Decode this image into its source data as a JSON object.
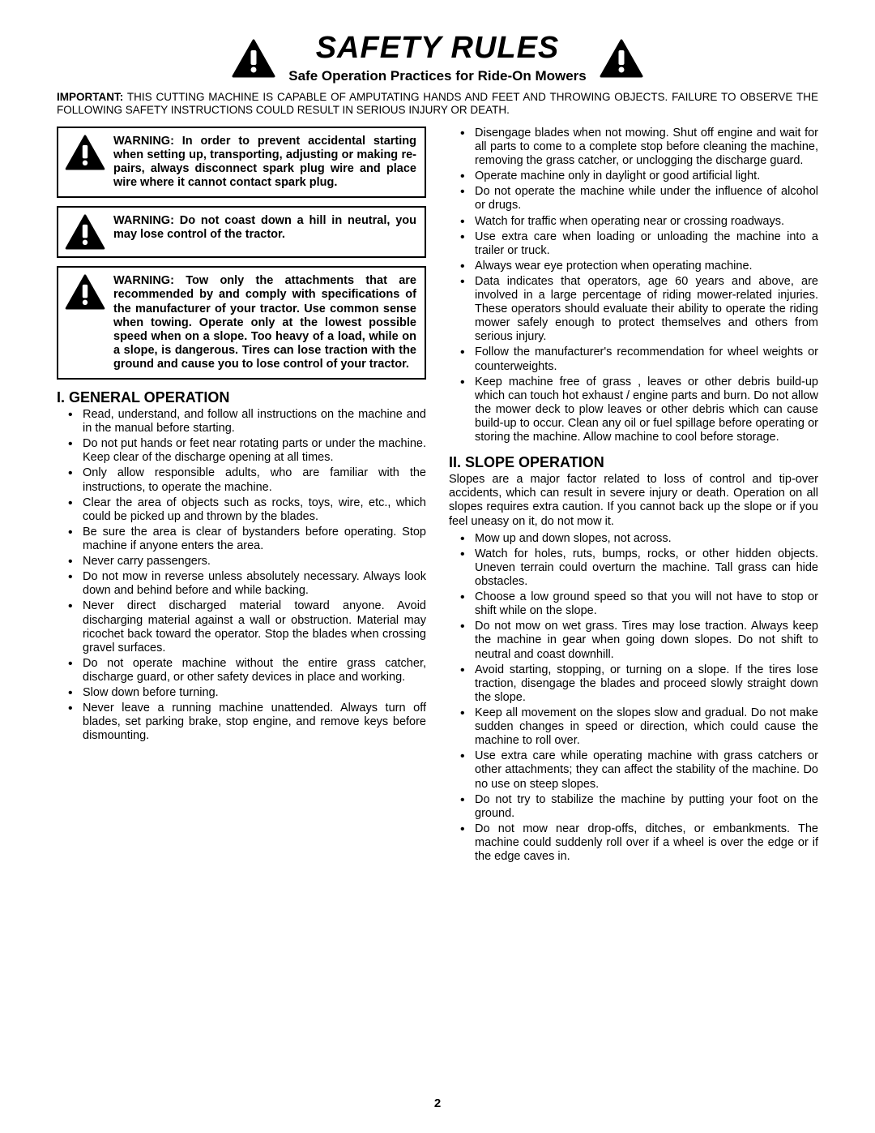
{
  "page_number": "2",
  "header": {
    "title": "SAFETY RULES",
    "subtitle": "Safe Operation Practices for Ride-On Mowers"
  },
  "important": {
    "label": "IMPORTANT:",
    "text": "THIS CUTTING MACHINE IS CAPABLE OF AMPUTATING HANDS AND FEET AND THROWING OBJECTS.  FAILURE TO OBSERVE THE FOLLOWING SAFETY INSTRUCTIONS COULD RESULT IN SERIOUS INJURY OR DEATH."
  },
  "warnings": [
    "WARNING:  In order to prevent ac­ci­den­tal starting when setting up, trans­port­ing, adjusting or making re­pairs, always disconnect spark plug wire and place wire where it cannot contact spark plug.",
    "WARNING:  Do not coast down a hill in neutral, you may lose control of the tractor.",
    "WARNING:  Tow only the attachments that are recommended by and com­ply with specifications of the man­u­fac­tur­er of your tractor. Use common sense when towing. Operate only at the lowest possible speed when on a slope.  Too heavy of a load, while on a slope, is dangerous.  Tires can lose traction with the ground and cause you to lose control of your tractor."
  ],
  "section1": {
    "heading": "I. GENERAL OPERATION",
    "items": [
      "Read, understand, and follow all instructions on the machine and in the manual before starting.",
      "Do not put hands or feet near rotating parts or under the machine. Keep clear of the discharge opening at all times.",
      "Only allow responsible adults, who are familiar with the instructions, to operate the machine.",
      "Clear the area of objects such as  rocks, toys, wire, etc., which could be picked up and thrown by the blades.",
      "Be sure the area is clear of bystanders before op­er­at­ing.  Stop machine if anyone enters the area.",
      "Never carry passengers.",
      "Do not mow in reverse unless absolutely necessary.  Always look down and behind before and while back­ing.",
      "Never direct discharged material toward anyone. Avoid discharging material against a wall or obstruction. Ma­te­ri­al may ricochet back toward the operator. Stop the blades when crossing gravel surfaces.",
      "Do not operate machine without the entire grass catch­er, discharge guard, or other safety devices in place and working.",
      "Slow down before turning.",
      "Never leave a running machine unattended.  Always turn off blades, set parking brake, stop engine, and remove keys before dismounting."
    ]
  },
  "right_top_items": [
    "Disengage blades when not mowing. Shut off engine and wait for all parts to come to a complete stop before cleaning the machine, removing the grass catcher, or unclogging the discharge guard.",
    "Operate machine only in daylight or good artificial light.",
    "Do not operate the machine while under the influence of alcohol or drugs.",
    "Watch for traffic when operating near or crossing road­ways.",
    "Use extra care when loading or unloading the machine into a trailer or truck.",
    "Always wear eye protection when operating ma­chine.",
    "Data indicates that operators, age 60 years and above, are involved in a large percentage of riding mower-re­lat­ed injuries.  These operators should evaluate their ability to operate the riding mower safely enough to protect themselves and others from serious injury.",
    "Follow the manufacturer's recommendation for wheel weights or counterweights.",
    "Keep machine free of grass , leaves or other debris build-up which can touch hot exhaust / engine parts and burn. Do not allow the mower deck to plow leaves or other debris which can cause build-up to occur. Clean any oil or fuel spillage before operating or storing the machine. Allow machine to cool before storage."
  ],
  "section2": {
    "heading": "II. SLOPE OPERATION",
    "intro": "Slopes are a major factor related to loss of control and tip-over accidents, which can result in severe injury or death.  Operation on all slopes requires extra caution.  If you cannot back up the slope or if you feel uneasy on it, do not mow it.",
    "items": [
      "Mow up and down slopes, not across.",
      "Watch for holes, ruts, bumps, rocks, or other hidden objects.  Uneven terrain could overturn the machine.  Tall grass can hide obstacles.",
      "Choose a low ground speed so that you will not have to stop or shift while on the slope.",
      "Do not mow on wet grass. Tires may lose traction.  Always keep the machine in gear when going down slopes. Do not shift to neutral and coast downhill.",
      "Avoid starting, stopping, or turning on a slope.  If the tires lose traction,  disengage the blades and proceed slowly straight down the slope.",
      "Keep all movement on the slopes slow and gradual.  Do not make sudden changes in speed or direction, which could cause the machine to roll over.",
      "Use extra care while operating machine with grass catchers or other attachments; they can affect the stability of the machine. Do no use on steep slopes.",
      "Do not  try to stabilize the machine by putting your foot on the ground.",
      "Do not mow near drop-offs, ditches, or embankments.  The machine could suddenly roll over if a wheel is over the edge or if the edge caves in."
    ]
  },
  "colors": {
    "text": "#000000",
    "background": "#ffffff",
    "border": "#000000"
  }
}
